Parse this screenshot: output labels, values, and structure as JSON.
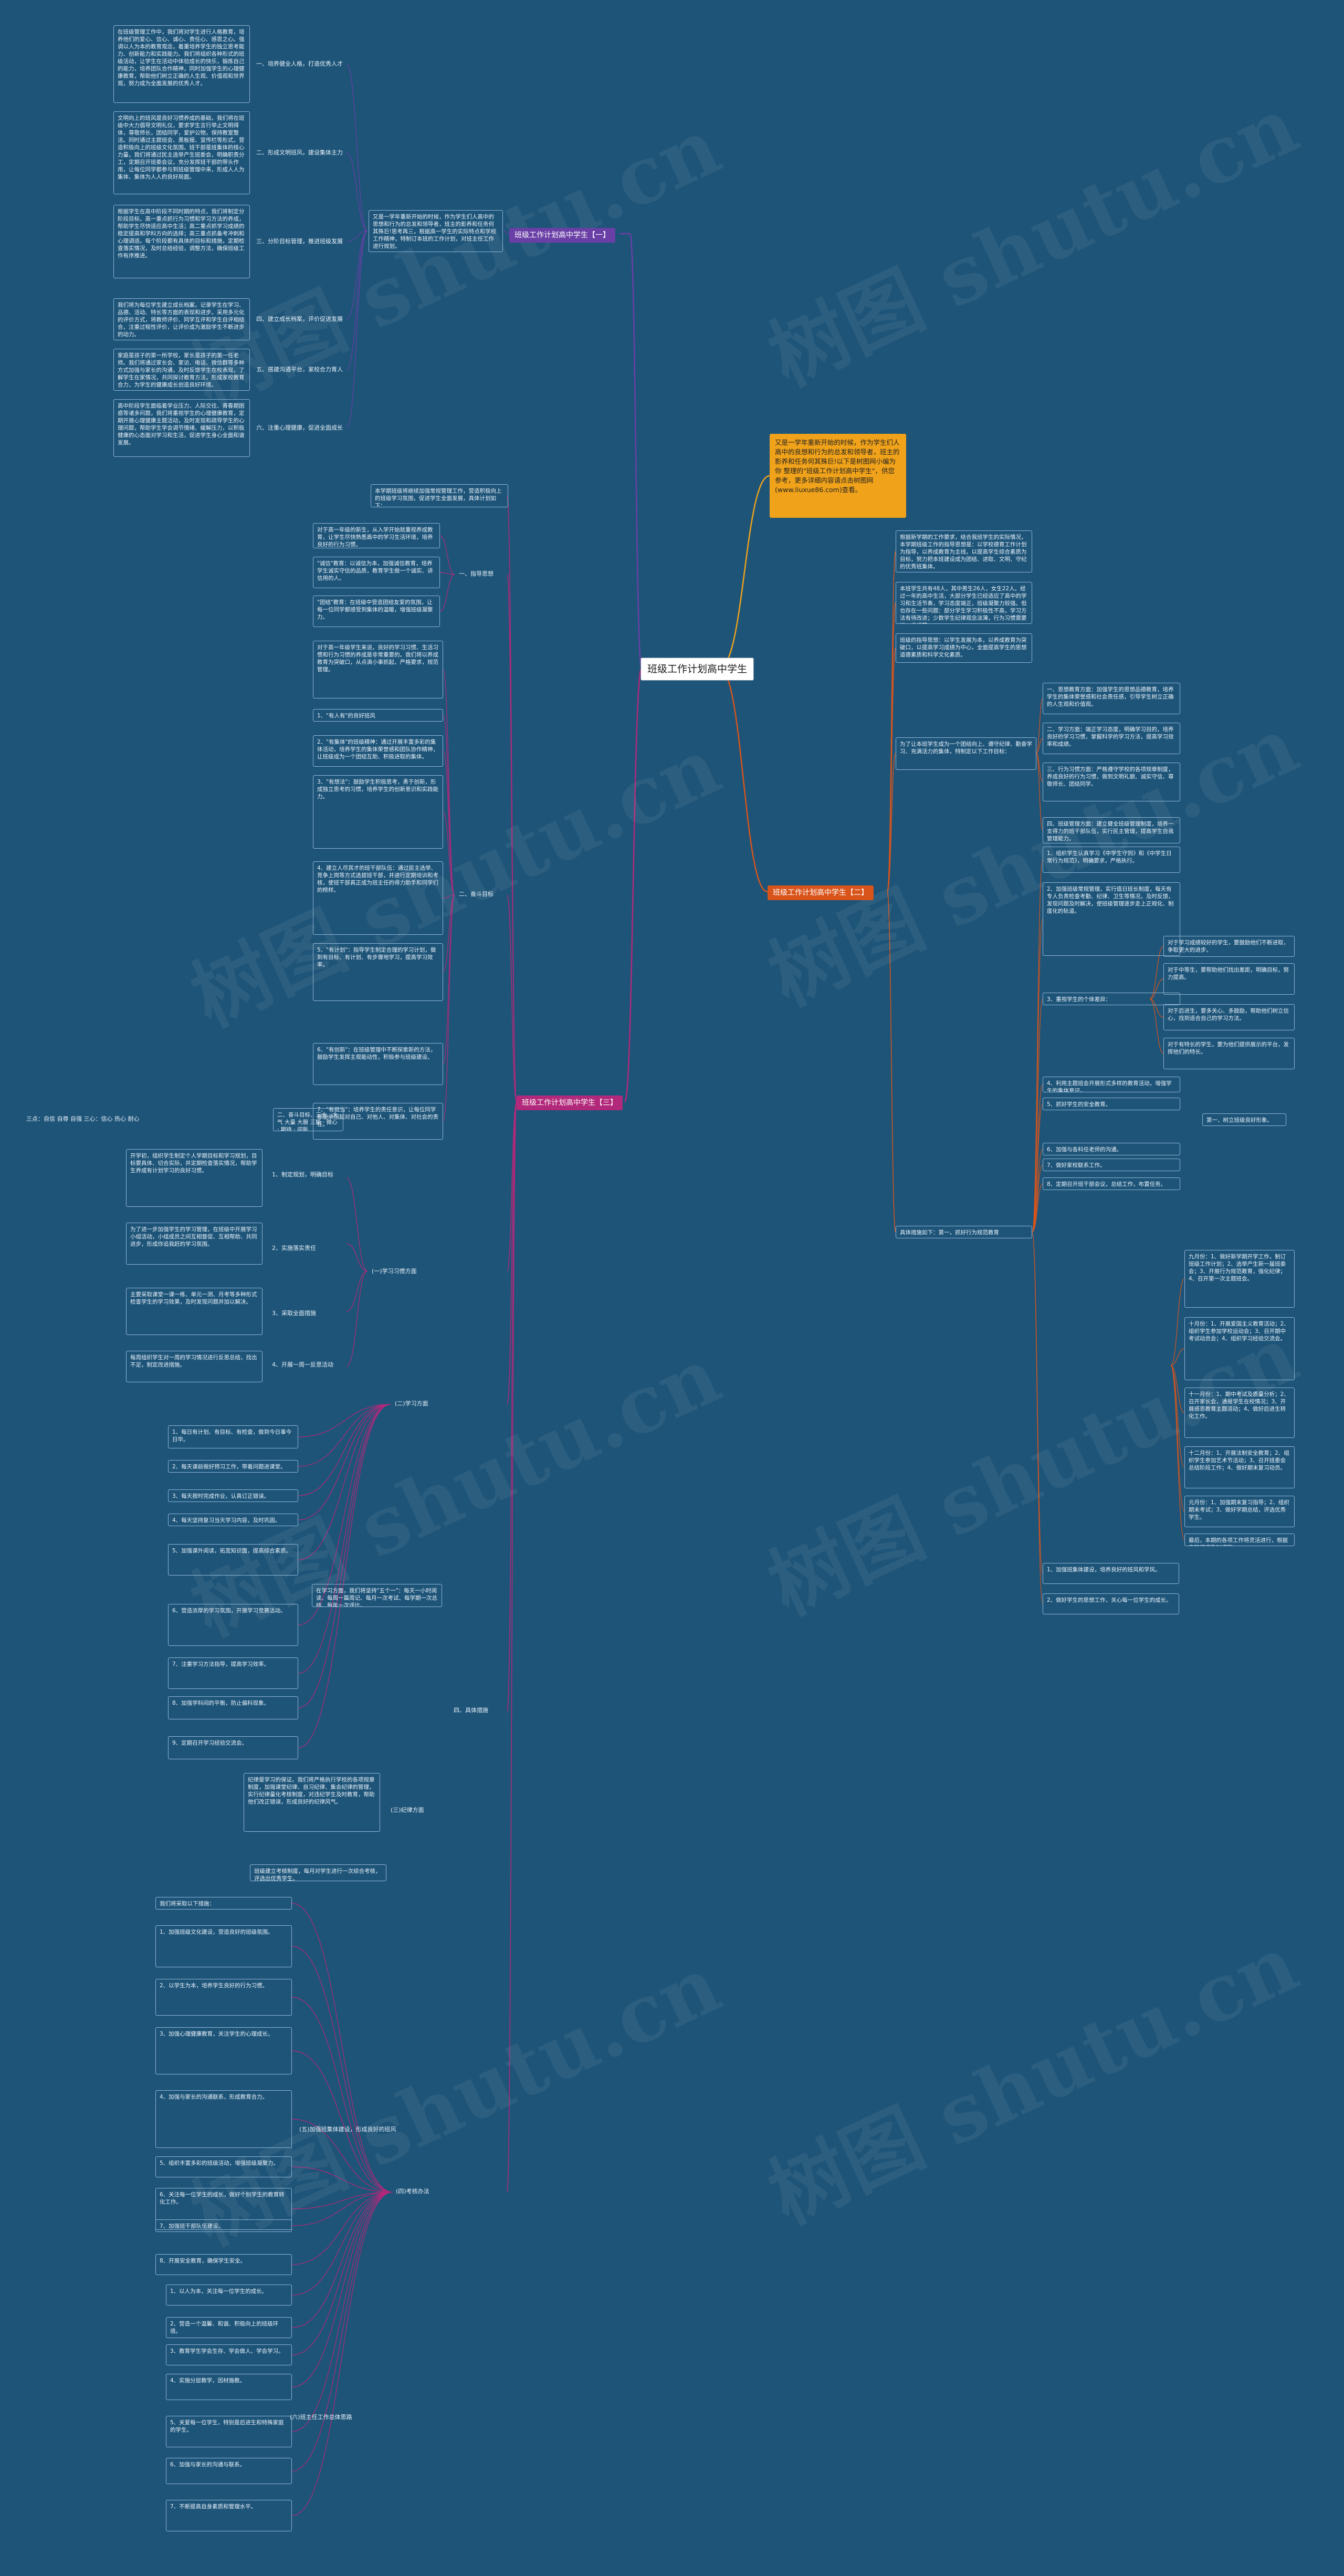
{
  "watermark": "树图 shutu.cn",
  "colors": {
    "background": "#1e5478",
    "branch1": "#6a3fa6",
    "branch2": "#d9541b",
    "branch3": "#b2287a",
    "intro": "#f0a21a"
  },
  "root": {
    "title": "班级工作计划高中学生"
  },
  "intro": "又是一学年重新开始的时候，作为学生们人高中的良想和行为的总发和领导者，班主的影养和任务何其殊巨!以下是树图网小编为你 整理的\"班级工作计划高中学生\"，供您参考，更多详细内容请点击树图网(www.liuxue86.com)查看。",
  "b1": {
    "title": "班级工作计划高中学生【一】",
    "summary": "又是一学年重新开始的时候，作为学生们人高中的思想和行为的总发和领导者，班主的影养和任务何其殊巨!思考再三，根据高一学生的实际特点和学校工作精神，特制订本班的工作计划，对班主任工作进行规划。",
    "items": [
      {
        "label": "一、培养健全人格，打造优秀人才",
        "text": "在班级管理工作中，我们将对学生进行人格教育，培养他们的爱心、信心、诚心、责任心、感恩之心。强调以人为本的教育观念，着重培养学生的独立思考能力、创新能力和实践能力。我们将组织各种形式的班级活动，让学生在活动中体验成长的快乐，锻炼自己的能力，培养团队合作精神，同时加强学生的心理健康教育，帮助他们树立正确的人生观、价值观和世界观，努力成为全面发展的优秀人才。"
      },
      {
        "label": "二、形成文明班风，建设集体主力",
        "text": "文明向上的班风是良好习惯养成的基础，我们将在班级中大力倡导文明礼仪，要求学生言行举止文明得体，尊敬师长，团结同学，爱护公物，保持教室整洁。同时通过主题班会、黑板报、宣传栏等形式，营造积极向上的班级文化氛围。班干部是班集体的核心力量，我们将通过民主选举产生班委会，明确职责分工，定期召开班委会议，充分发挥班干部的带头作用，让每位同学都参与到班级管理中来，形成人人为集体、集体为人人的良好局面。"
      },
      {
        "label": "三、分阶目标管理，推进班级发展",
        "text": "根据学生在高中阶段不同时期的特点，我们将制定分阶段目标。高一重点抓行为习惯和学习方法的养成，帮助学生尽快适应高中生活；高二重点抓学习成绩的稳定提高和学科方向的选择；高三重点抓备考冲刺和心理调适。每个阶段都有具体的目标和措施，定期检查落实情况，及时总结经验，调整方法，确保班级工作有序推进。"
      },
      {
        "label": "四、建立成长档案，评价促进发展",
        "text": "我们将为每位学生建立成长档案，记录学生在学习、品德、活动、特长等方面的表现和进步。采用多元化的评价方式，将教师评价、同学互评和学生自评相结合，注重过程性评价，让评价成为激励学生不断进步的动力。"
      },
      {
        "label": "五、搭建沟通平台，家校合力育人",
        "text": "家庭是孩子的第一所学校，家长是孩子的第一任老师。我们将通过家长会、家访、电话、微信群等多种方式加强与家长的沟通，及时反馈学生在校表现，了解学生在家情况，共同探讨教育方法，形成家校教育合力，为学生的健康成长创造良好环境。"
      },
      {
        "label": "六、注重心理健康，促进全面成长",
        "text": "高中阶段学生面临着学业压力、人际交往、青春期困惑等诸多问题，我们将重视学生的心理健康教育，定期开展心理健康主题活动，及时发现和疏导学生的心理问题，帮助学生学会调节情绪、缓解压力，以积极健康的心态面对学习和生活，促进学生身心全面和谐发展。"
      }
    ]
  },
  "b2": {
    "title": "班级工作计划高中学生【二】",
    "paras": [
      "根据新学期的工作要求，结合我班学生的实际情况，本学期班级工作的指导思想是：以学校德育工作计划为指导，以养成教育为主线，以提高学生综合素质为目标，努力把本班建设成为团结、进取、文明、守纪的优秀班集体。",
      "本班学生共有48人，其中男生26人，女生22人。经过一年的高中生活，大部分学生已经适应了高中的学习和生活节奏，学习态度端正，班级凝聚力较强。但也存在一些问题：部分学生学习积极性不高，学习方法有待改进；少数学生纪律观念淡薄，行为习惯需要进一步规范。",
      "班级的指导思想：以学生发展为本，以养成教育为突破口，以提高学习成绩为中心，全面提高学生的思想道德素质和科学文化素质。"
    ],
    "goals": {
      "label": "为了让本班学生成为一个团结向上、遵守纪律、勤奋学习、充满活力的集体，特制定以下工作目标：",
      "items": [
        "一、思想教育方面：加强学生的思想品德教育，培养学生的集体荣誉感和社会责任感，引导学生树立正确的人生观和价值观。",
        "二、学习方面：端正学习态度，明确学习目的，培养良好的学习习惯，掌握科学的学习方法，提高学习效率和成绩。",
        "三、行为习惯方面：严格遵守学校的各项规章制度，养成良好的行为习惯，做到文明礼貌、诚实守信、尊敬师长、团结同学。",
        "四、班级管理方面：建立健全班级管理制度，培养一支得力的班干部队伍，实行民主管理，提高学生自我管理能力。"
      ]
    },
    "measures": {
      "label": "具体措施如下：第一，抓好行为规范教育",
      "items": [
        "1、组织学生认真学习《中学生守则》和《中学生日常行为规范》，明确要求，严格执行。",
        "2、加强班级常规管理，实行值日班长制度，每天有专人负责检查考勤、纪律、卫生等情况，及时反馈，发现问题及时解决，使班级管理逐步走上正规化、制度化的轨道。",
        "3、重视学生的个体差异：",
        "4、利用主题班会开展形式多样的教育活动，增强学生的集体意识。",
        "5、抓好学生的安全教育。",
        "6、加强与各科任老师的沟通。",
        "7、做好家校联系工作。",
        "8、定期召开班干部会议，总结工作，布置任务。"
      ],
      "sub": [
        "对于学习成绩较好的学生，要鼓励他们不断进取，争取更大的进步。",
        "对于中等生，要帮助他们找出差距，明确目标，努力提高。",
        "对于后进生，要多关心、多鼓励，帮助他们树立信心，找到适合自己的学习方法。",
        "对于有特长的学生，要为他们提供展示的平台，发挥他们的特长。"
      ],
      "side": "第一、树立班级良好形象。"
    },
    "monthly": [
      "九月份：1、做好新学期开学工作，制订班级工作计划；2、选举产生新一届班委会；3、开展行为规范教育，强化纪律；4、召开第一次主题班会。",
      "十月份：1、开展爱国主义教育活动；2、组织学生参加学校运动会；3、召开期中考试动员会；4、组织学习经验交流会。",
      "十一月份：1、期中考试及质量分析；2、召开家长会，通报学生在校情况；3、开展感恩教育主题活动；4、做好后进生转化工作。",
      "十二月份：1、开展法制安全教育；2、组织学生参加艺术节活动；3、召开班委会总结阶段工作；4、做好期末复习动员。",
      "元月份：1、加强期末复习指导；2、组织期末考试；3、做好学期总结，评选优秀学生。",
      "最后，本期的各项工作将灵活进行，根据实际情况及时调整。"
    ],
    "extra": [
      "1、加强班集体建设，培养良好的班风和学风。",
      "2、做好学生的思想工作，关心每一位学生的成长。"
    ]
  },
  "b3": {
    "title": "班级工作计划高中学生【三】",
    "summary": "本学期班级将继续加强常规管理工作，营造积极向上的班级学习氛围，促进学生全面发展，具体计划如下：",
    "s1": {
      "label": "一、指导思想",
      "items": [
        "对于高一年级的新生，从入学开始就重视养成教育，让学生尽快熟悉高中的学习生活环境，培养良好的行为习惯。",
        "\"诚信\"教育：以诚信为本，加强诚信教育，培养学生诚实守信的品质，教育学生做一个诚实、讲信用的人。",
        "\"团结\"教育：在班级中营造团结友爱的氛围，让每一位同学都感受到集体的温暖，增强班级凝聚力。"
      ]
    },
    "s2": {
      "label": "二、奋斗目标",
      "items": [
        "对于高一年级学生来说，良好的学习习惯、生活习惯和行为习惯的养成是非常重要的。我们将以养成教育为突破口，从点滴小事抓起，严格要求，规范管理。",
        "1、\"有人有\"的良好班风",
        "2、\"有集体\"的班级精神：通过开展丰富多彩的集体活动，培养学生的集体荣誉感和团队协作精神，让班级成为一个团结互助、积极进取的集体。",
        "3、\"有想法\"：鼓励学生积极思考，勇于创新，形成独立思考的习惯，培养学生的创新意识和实践能力。",
        "4、建立人尽其才的班干部队伍：通过民主选举、竞争上岗等方式选拔班干部，并进行定期培训和考核，使班干部真正成为班主任的得力助手和同学们的榜样。",
        "5、\"有计划\"：指导学生制定合理的学习计划，做到有目标、有计划、有步骤地学习，提高学习效率。",
        "6、\"有创新\"：在班级管理中不断探索新的方法，鼓励学生发挥主观能动性，积极参与班级建设。",
        "7、\"有担当\"：培养学生的责任意识，让每位同学都能承担起对自己、对他人、对集体、对社会的责任。"
      ],
      "side_label": "二、奋斗目标、三大、大气 大量 大服 三能 · 微心 · 期待 · 迎新",
      "side_left": "三点：自信 自尊 自强 三心：信心 热心 耐心"
    },
    "s3": {
      "label": "(一)学习习惯方面",
      "items": [
        {
          "label": "1、制定规划，明确目标",
          "text": "开学初，组织学生制定个人学期目标和学习规划，目标要具体、切合实际，并定期检查落实情况，帮助学生养成有计划学习的良好习惯。"
        },
        {
          "label": "2、实施落实责任",
          "text": "为了进一步加强学生的学习管理，在班级中开展学习小组活动，小组成员之间互相督促、互相帮助、共同进步，形成你追我赶的学习氛围。"
        },
        {
          "label": "3、采取全面措施",
          "text": "主要采取课堂一课一练、单元一测、月考等多种形式检查学生的学习效果，及时发现问题并加以解决。"
        },
        {
          "label": "4、开展一周一反思活动",
          "text": "每周组织学生对一周的学习情况进行反思总结，找出不足，制定改进措施。"
        }
      ]
    },
    "s4": {
      "label": "(二)学习方面",
      "items": [
        "1、每日有计划、有目标、有检查，做到今日事今日毕。",
        "2、每天课前做好预习工作，带着问题进课堂。",
        "3、每天按时完成作业，认真订正错误。",
        "4、每天坚持复习当天学习内容，及时巩固。",
        "5、加强课外阅读，拓宽知识面，提高综合素质。",
        "6、营造浓厚的学习氛围，开展学习竞赛活动。",
        "7、注重学习方法指导，提高学习效率。",
        "8、加强学科间的平衡，防止偏科现象。",
        "9、定期召开学习经验交流会。"
      ],
      "side": "在学习方面，我们将坚持\"五个一\"：每天一小时阅读、每周一篇周记、每月一次考试、每学期一次总结、每年一次评比。"
    },
    "s5": {
      "label": "(三)纪律方面",
      "text": "纪律是学习的保证。我们将严格执行学校的各项规章制度，加强课堂纪律、自习纪律、集会纪律的管理，实行纪律量化考核制度，对违纪学生及时教育，帮助他们改正错误，形成良好的纪律风气。"
    },
    "s6": {
      "label": "四、具体措施"
    },
    "s7": {
      "label": "(四)考核办法",
      "intro": "班级建立考核制度，每月对学生进行一次综合考核，评选出优秀学生。",
      "items": [
        "我们将采取以下措施：",
        "1、加强班级文化建设，营造良好的班级氛围。",
        "2、以学生为本，培养学生良好的行为习惯。",
        "3、加强心理健康教育，关注学生的心理成长。",
        "4、加强与家长的沟通联系，形成教育合力。",
        "5、组织丰富多彩的班级活动，增强班级凝聚力。",
        "6、关注每一位学生的成长，做好个别学生的教育转化工作。",
        "7、加强班干部队伍建设。",
        "8、开展安全教育，确保学生安全。"
      ],
      "mid": "(五)加强班集体建设，形成良好的班风",
      "mid2": "(六)班主任工作总体思路",
      "last_items": [
        "1、以人为本，关注每一位学生的成长。",
        "2、营造一个温馨、和谐、积极向上的班级环境。",
        "3、教育学生学会生存、学会做人、学会学习。",
        "4、实施分层教学，因材施教。",
        "5、关爱每一位学生，特别是后进生和特殊家庭的学生。",
        "6、加强与家长的沟通与联系。",
        "7、不断提高自身素质和管理水平。"
      ]
    }
  }
}
